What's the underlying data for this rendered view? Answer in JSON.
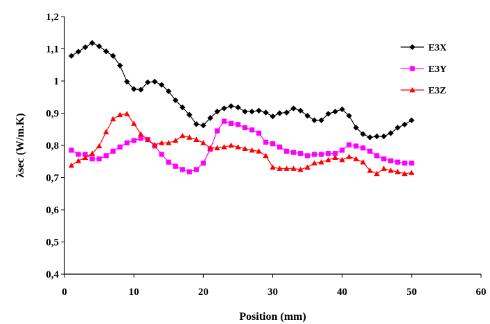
{
  "chart_data": {
    "type": "line",
    "title": "",
    "xlabel": "Position (mm)",
    "ylabel": "λsec  (W/m.K)",
    "xlim": [
      0,
      60
    ],
    "ylim": [
      0.4,
      1.2
    ],
    "xticks": [
      0,
      10,
      20,
      30,
      40,
      50,
      60
    ],
    "xtick_labels": [
      "0",
      "10",
      "20",
      "30",
      "40",
      "50",
      "60"
    ],
    "yticks": [
      0.4,
      0.5,
      0.6,
      0.7,
      0.8,
      0.9,
      1.0,
      1.1,
      1.2
    ],
    "ytick_labels": [
      "0,4",
      "0,5",
      "0,6",
      "0,7",
      "0,8",
      "0,9",
      "1",
      "1,1",
      "1,2"
    ],
    "grid": false,
    "legend_position": "top-right",
    "series": [
      {
        "name": "E3X",
        "color": "#000000",
        "marker": "diamond",
        "x": [
          1,
          2,
          3,
          4,
          5,
          6,
          7,
          8,
          9,
          10,
          11,
          12,
          13,
          14,
          15,
          16,
          17,
          18,
          19,
          20,
          21,
          22,
          23,
          24,
          25,
          26,
          27,
          28,
          29,
          30,
          31,
          32,
          33,
          34,
          35,
          36,
          37,
          38,
          39,
          40,
          41,
          42,
          43,
          44,
          45,
          46,
          47,
          48,
          49,
          50
        ],
        "values": [
          1.078,
          1.091,
          1.105,
          1.118,
          1.108,
          1.092,
          1.078,
          1.048,
          0.998,
          0.975,
          0.973,
          0.996,
          0.998,
          0.988,
          0.968,
          0.94,
          0.918,
          0.895,
          0.866,
          0.862,
          0.885,
          0.905,
          0.915,
          0.922,
          0.918,
          0.905,
          0.905,
          0.908,
          0.902,
          0.89,
          0.9,
          0.902,
          0.915,
          0.908,
          0.892,
          0.878,
          0.878,
          0.898,
          0.905,
          0.912,
          0.892,
          0.855,
          0.835,
          0.825,
          0.828,
          0.828,
          0.838,
          0.855,
          0.865,
          0.878
        ]
      },
      {
        "name": "E3Y",
        "color": "#ff00ff",
        "marker": "square",
        "x": [
          1,
          2,
          3,
          4,
          5,
          6,
          7,
          8,
          9,
          10,
          11,
          12,
          13,
          14,
          15,
          16,
          17,
          18,
          19,
          20,
          21,
          22,
          23,
          24,
          25,
          26,
          27,
          28,
          29,
          30,
          31,
          32,
          33,
          34,
          35,
          36,
          37,
          38,
          39,
          40,
          41,
          42,
          43,
          44,
          45,
          46,
          47,
          48,
          49,
          50
        ],
        "values": [
          0.785,
          0.772,
          0.772,
          0.758,
          0.758,
          0.768,
          0.782,
          0.795,
          0.808,
          0.815,
          0.822,
          0.818,
          0.798,
          0.772,
          0.748,
          0.735,
          0.725,
          0.718,
          0.725,
          0.745,
          0.788,
          0.845,
          0.875,
          0.868,
          0.865,
          0.855,
          0.848,
          0.838,
          0.81,
          0.805,
          0.795,
          0.782,
          0.778,
          0.775,
          0.768,
          0.772,
          0.772,
          0.775,
          0.775,
          0.785,
          0.802,
          0.798,
          0.792,
          0.782,
          0.768,
          0.758,
          0.752,
          0.748,
          0.745,
          0.745
        ]
      },
      {
        "name": "E3Z",
        "color": "#ff0000",
        "marker": "triangle",
        "x": [
          1,
          2,
          3,
          4,
          5,
          6,
          7,
          8,
          9,
          10,
          11,
          12,
          13,
          14,
          15,
          16,
          17,
          18,
          19,
          20,
          21,
          22,
          23,
          24,
          25,
          26,
          27,
          28,
          29,
          30,
          31,
          32,
          33,
          34,
          35,
          36,
          37,
          38,
          39,
          40,
          41,
          42,
          43,
          44,
          45,
          46,
          47,
          48,
          49,
          50
        ],
        "values": [
          0.738,
          0.752,
          0.762,
          0.775,
          0.798,
          0.842,
          0.882,
          0.895,
          0.898,
          0.868,
          0.835,
          0.818,
          0.802,
          0.808,
          0.808,
          0.815,
          0.83,
          0.825,
          0.818,
          0.808,
          0.792,
          0.792,
          0.795,
          0.8,
          0.795,
          0.79,
          0.785,
          0.782,
          0.768,
          0.732,
          0.728,
          0.728,
          0.728,
          0.725,
          0.732,
          0.745,
          0.748,
          0.755,
          0.762,
          0.755,
          0.765,
          0.758,
          0.748,
          0.722,
          0.712,
          0.728,
          0.722,
          0.718,
          0.712,
          0.715
        ]
      }
    ]
  }
}
